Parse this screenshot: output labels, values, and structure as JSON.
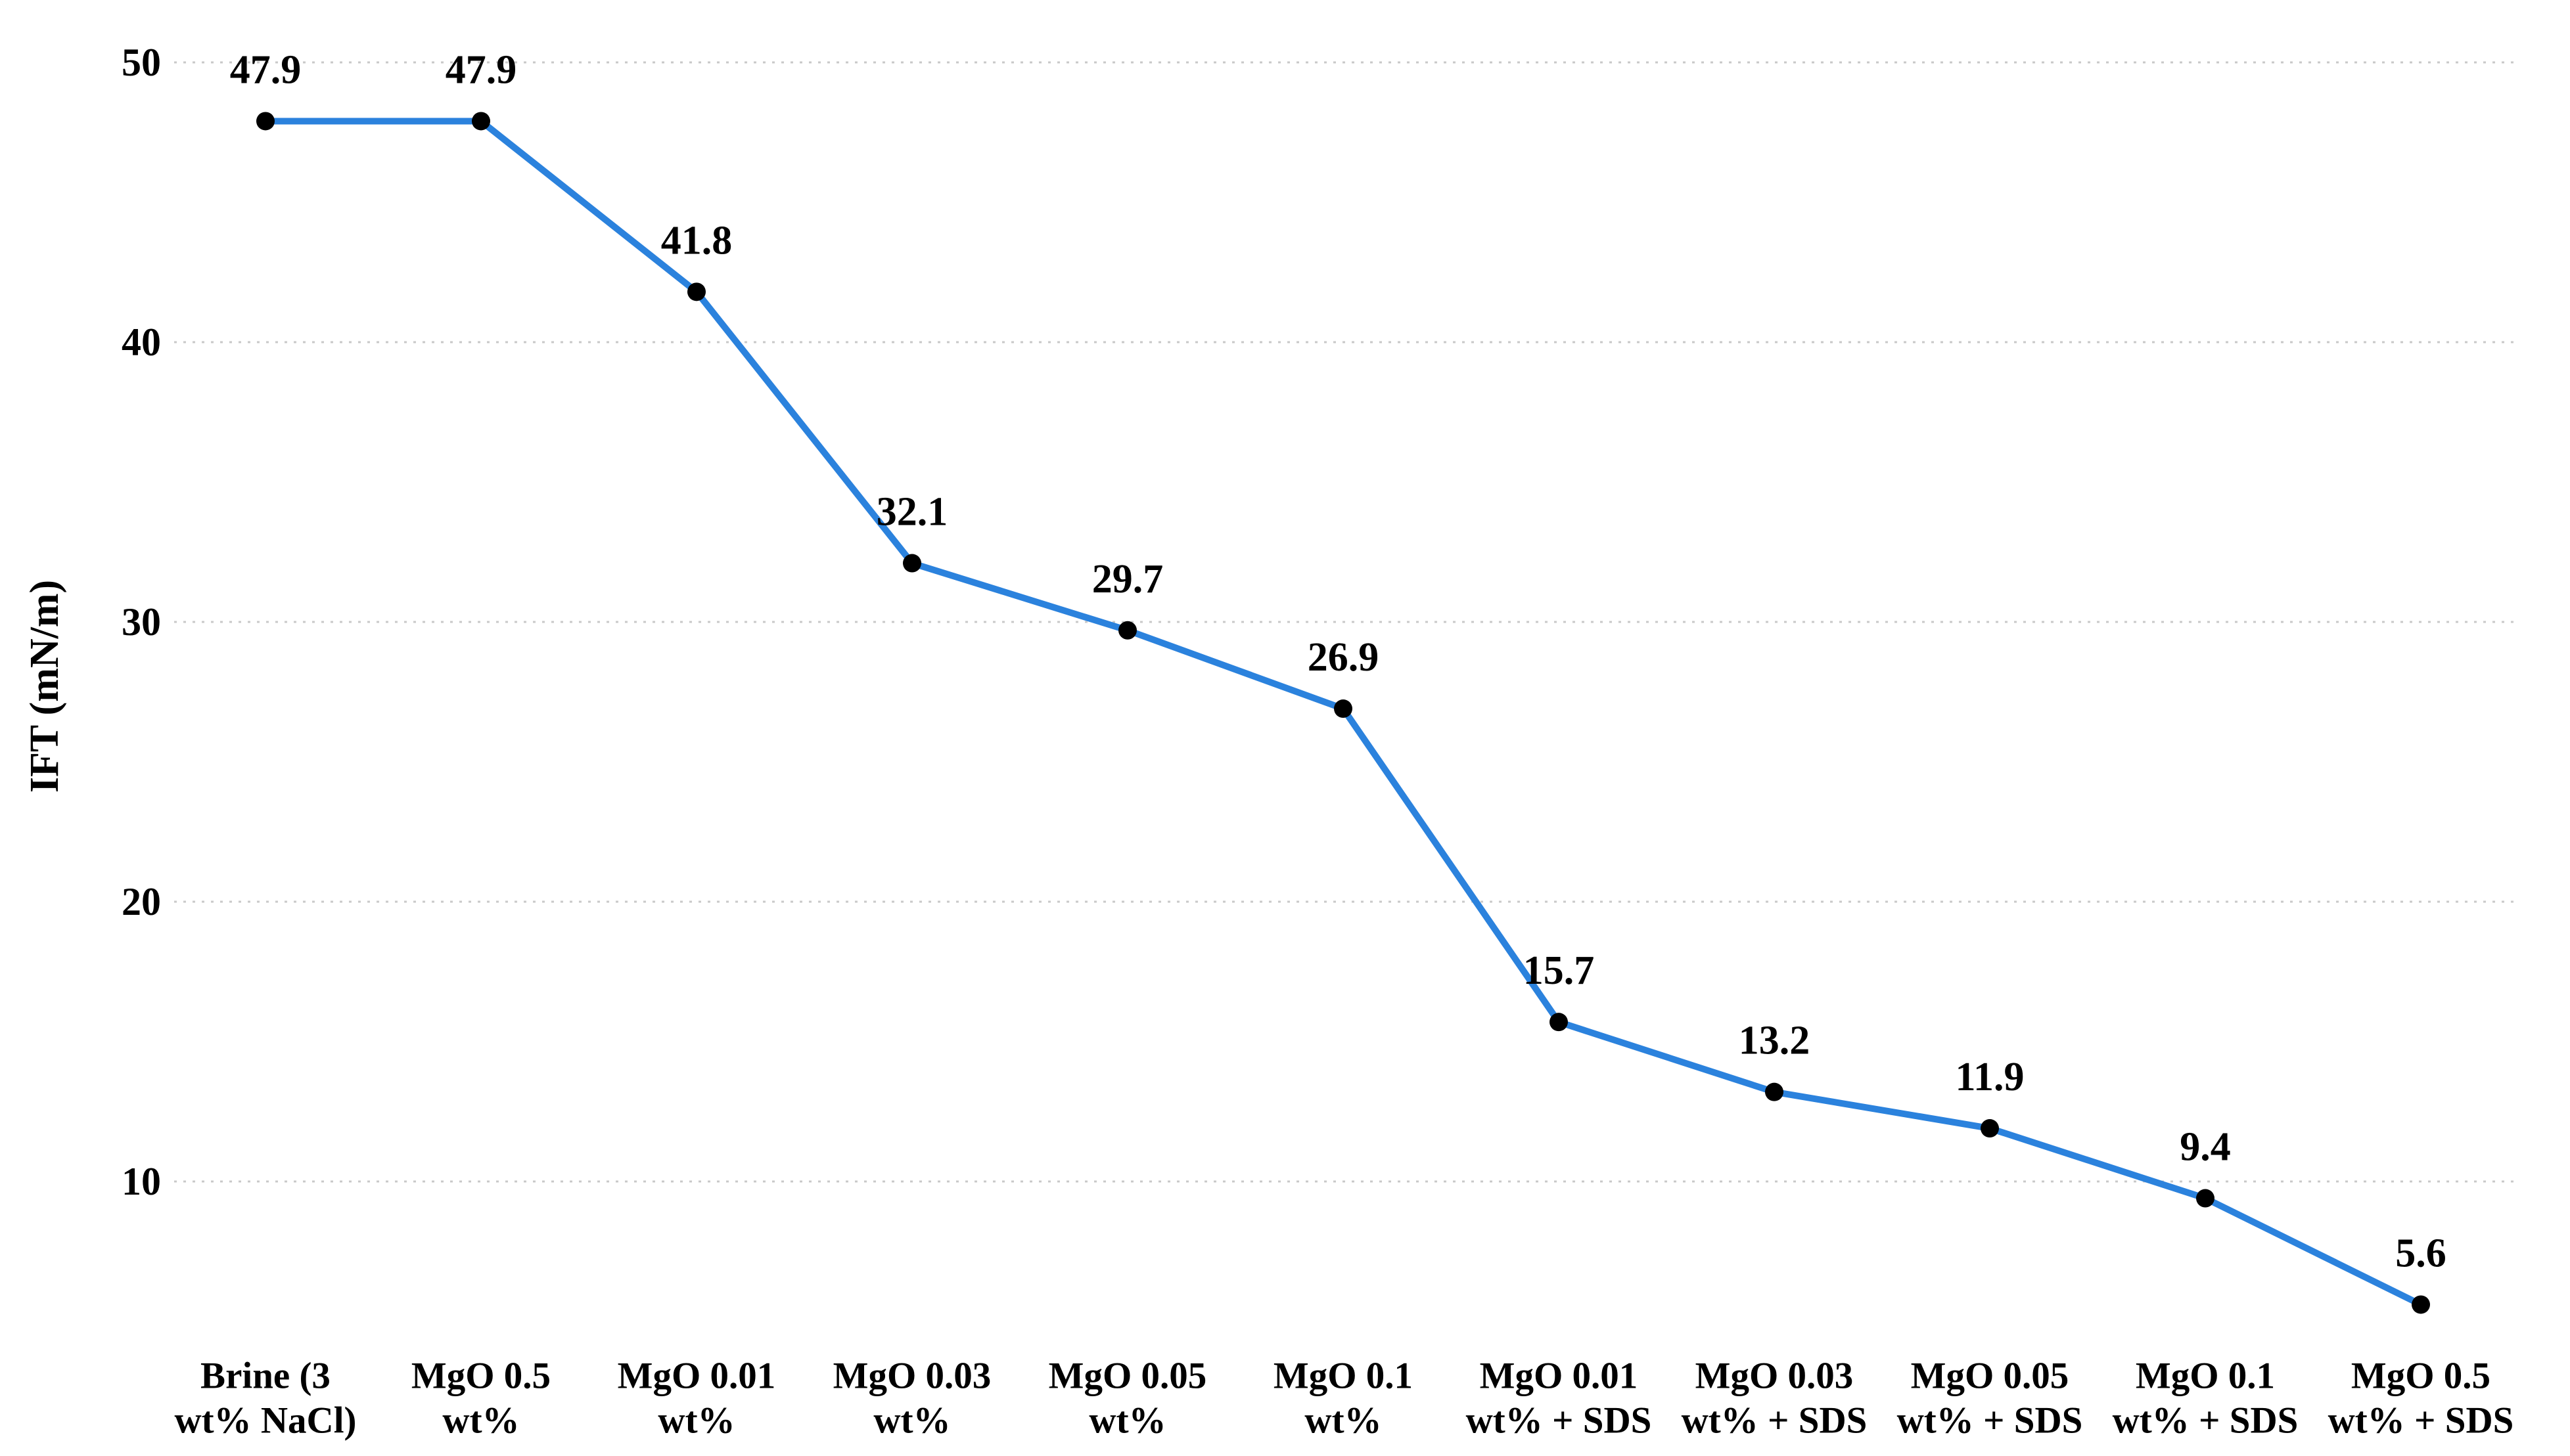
{
  "chart_data": {
    "type": "line",
    "title": "",
    "ylabel": "IFT (mN/m)",
    "xlabel": "",
    "categories": [
      "Brine (3\nwt% NaCl)",
      "MgO 0.5\nwt%",
      "MgO 0.01\nwt%",
      "MgO 0.03\nwt%",
      "MgO 0.05\nwt%",
      "MgO 0.1\nwt%",
      "MgO 0.01\nwt% + SDS",
      "MgO 0.03\nwt% + SDS",
      "MgO 0.05\nwt% + SDS",
      "MgO 0.1\nwt% + SDS",
      "MgO 0.5\nwt% + SDS"
    ],
    "series": [
      {
        "name": "IFT (mN/m)",
        "values": [
          47.9,
          47.9,
          41.8,
          32.1,
          29.7,
          26.9,
          15.7,
          13.2,
          11.9,
          9.4,
          5.6
        ]
      }
    ],
    "data_labels": [
      "47.9",
      "47.9",
      "41.8",
      "32.1",
      "29.7",
      "26.9",
      "15.7",
      "13.2",
      "11.9",
      "9.4",
      "5.6"
    ],
    "yticks": [
      50,
      40,
      30,
      20,
      10
    ],
    "ylim": [
      0,
      52
    ],
    "grid": true,
    "grid_style": "dotted",
    "legend": false,
    "marker": "circle",
    "colors": {
      "line": "#2b82dd",
      "marker": "#000000",
      "grid": "#c9c9c9",
      "text": "#000000",
      "background": "#ffffff"
    }
  }
}
